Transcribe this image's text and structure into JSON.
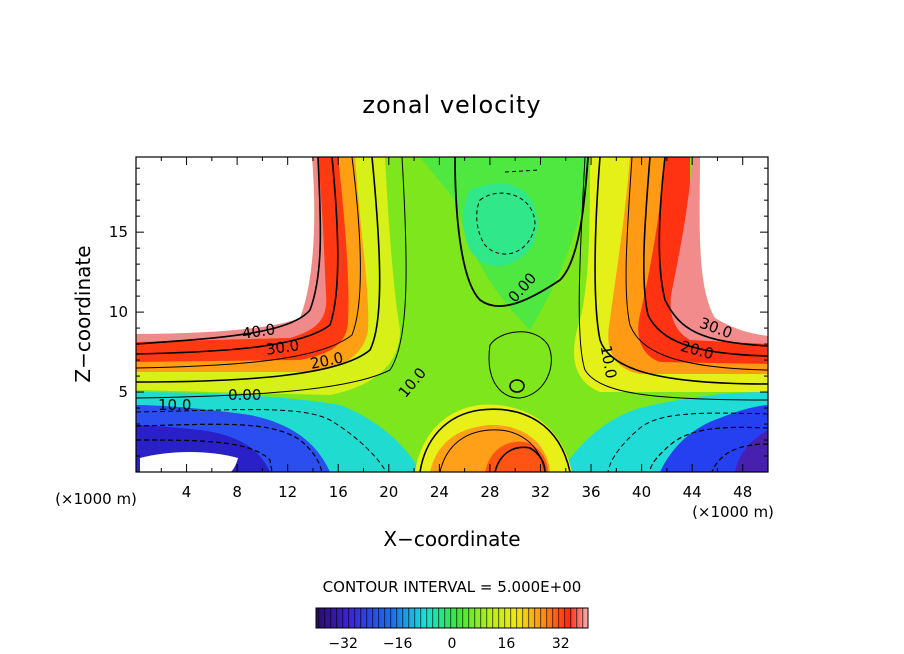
{
  "chart_data": {
    "type": "heatmap",
    "title": "zonal velocity",
    "xlabel": "X−coordinate",
    "ylabel": "Z−coordinate",
    "x_unit": "(×1000 m)",
    "x_unit_right": "(×1000 m)",
    "xlim": [
      0,
      50
    ],
    "ylim": [
      0,
      19.7
    ],
    "x_ticks": [
      "4",
      "8",
      "12",
      "16",
      "20",
      "24",
      "28",
      "32",
      "36",
      "40",
      "44",
      "48"
    ],
    "y_ticks": [
      "5",
      "10",
      "15"
    ],
    "contour_interval_text": "CONTOUR INTERVAL = 5.000E+00",
    "colorbar_ticks": [
      "−32",
      "−16",
      "0",
      "16",
      "32"
    ],
    "colorbar_range": [
      -40,
      40
    ],
    "contour_labels": [
      "40.0",
      "30.0",
      "20.0",
      "10.0",
      "0.00",
      "10.0",
      "0.00",
      "10.0",
      "20.0",
      "30.0",
      "10.0"
    ],
    "colors": {
      "min": "#3a0a78",
      "blue": "#1a2cf0",
      "cyan": "#18e0e6",
      "green": "#52e61a",
      "yellow": "#f0f018",
      "orange": "#ff8a10",
      "red": "#ff2a10",
      "pink": "#f4a0a0"
    }
  }
}
